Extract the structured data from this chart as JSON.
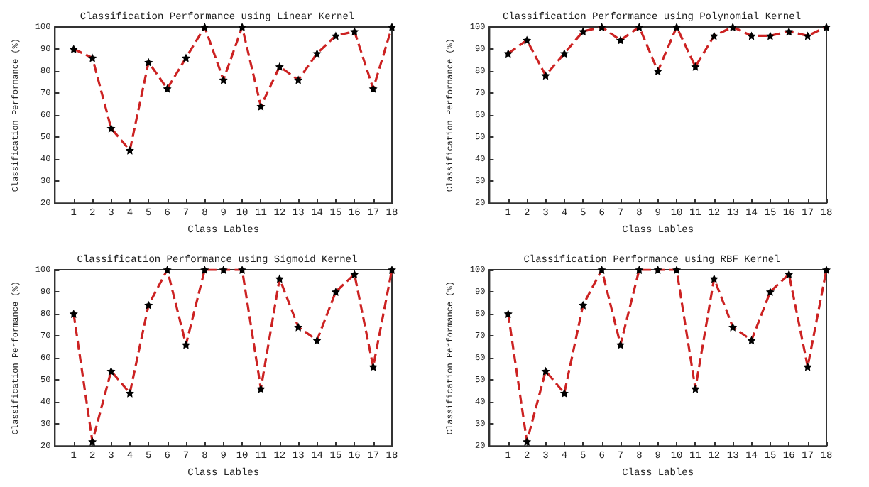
{
  "chart_data": [
    {
      "type": "line",
      "title": "Classification Performance using Linear Kernel",
      "xlabel": "Class Lables",
      "ylabel": "Classification Performance (%)",
      "x": [
        1,
        2,
        3,
        4,
        5,
        6,
        7,
        8,
        9,
        10,
        11,
        12,
        13,
        14,
        15,
        16,
        17,
        18
      ],
      "xlim": [
        0,
        18
      ],
      "xticks": [
        1,
        2,
        3,
        4,
        5,
        6,
        7,
        8,
        9,
        10,
        11,
        12,
        13,
        14,
        15,
        16,
        17,
        18
      ],
      "ylim": [
        20,
        100
      ],
      "yticks": [
        20,
        30,
        40,
        50,
        60,
        70,
        80,
        90,
        100
      ],
      "marker": "star",
      "line_style": "dashed",
      "series": [
        {
          "color": "#cc2222",
          "values": [
            90,
            86,
            54,
            44,
            84,
            72,
            86,
            100,
            76,
            100,
            64,
            82,
            76,
            88,
            96,
            98,
            72,
            100
          ]
        }
      ]
    },
    {
      "type": "line",
      "title": "Classification Performance using Polynomial Kernel",
      "xlabel": "Class Lables",
      "ylabel": "Classification Performance (%)",
      "x": [
        1,
        2,
        3,
        4,
        5,
        6,
        7,
        8,
        9,
        10,
        11,
        12,
        13,
        14,
        15,
        16,
        17,
        18
      ],
      "xlim": [
        0,
        18
      ],
      "xticks": [
        1,
        2,
        3,
        4,
        5,
        6,
        7,
        8,
        9,
        10,
        11,
        12,
        13,
        14,
        15,
        16,
        17,
        18
      ],
      "ylim": [
        20,
        100
      ],
      "yticks": [
        20,
        30,
        40,
        50,
        60,
        70,
        80,
        90,
        100
      ],
      "marker": "star",
      "line_style": "dashed",
      "series": [
        {
          "color": "#cc2222",
          "values": [
            88,
            94,
            78,
            88,
            98,
            100,
            94,
            100,
            80,
            100,
            82,
            96,
            100,
            96,
            96,
            98,
            96,
            100
          ]
        }
      ]
    },
    {
      "type": "line",
      "title": "Classification Performance using Sigmoid Kernel",
      "xlabel": "Class Lables",
      "ylabel": "Classification Performance (%)",
      "x": [
        1,
        2,
        3,
        4,
        5,
        6,
        7,
        8,
        9,
        10,
        11,
        12,
        13,
        14,
        15,
        16,
        17,
        18
      ],
      "xlim": [
        0,
        18
      ],
      "xticks": [
        1,
        2,
        3,
        4,
        5,
        6,
        7,
        8,
        9,
        10,
        11,
        12,
        13,
        14,
        15,
        16,
        17,
        18
      ],
      "ylim": [
        20,
        100
      ],
      "yticks": [
        20,
        30,
        40,
        50,
        60,
        70,
        80,
        90,
        100
      ],
      "marker": "star",
      "line_style": "dashed",
      "series": [
        {
          "color": "#cc2222",
          "values": [
            80,
            22,
            54,
            44,
            84,
            100,
            66,
            100,
            100,
            100,
            46,
            96,
            74,
            68,
            90,
            98,
            56,
            100
          ]
        }
      ]
    },
    {
      "type": "line",
      "title": "Classification Performance using RBF Kernel",
      "xlabel": "Class Lables",
      "ylabel": "Classification Performance (%)",
      "x": [
        1,
        2,
        3,
        4,
        5,
        6,
        7,
        8,
        9,
        10,
        11,
        12,
        13,
        14,
        15,
        16,
        17,
        18
      ],
      "xlim": [
        0,
        18
      ],
      "xticks": [
        1,
        2,
        3,
        4,
        5,
        6,
        7,
        8,
        9,
        10,
        11,
        12,
        13,
        14,
        15,
        16,
        17,
        18
      ],
      "ylim": [
        20,
        100
      ],
      "yticks": [
        20,
        30,
        40,
        50,
        60,
        70,
        80,
        90,
        100
      ],
      "marker": "star",
      "line_style": "dashed",
      "series": [
        {
          "color": "#cc2222",
          "values": [
            80,
            22,
            54,
            44,
            84,
            100,
            66,
            100,
            100,
            100,
            46,
            96,
            74,
            68,
            90,
            98,
            56,
            100
          ]
        }
      ]
    }
  ]
}
